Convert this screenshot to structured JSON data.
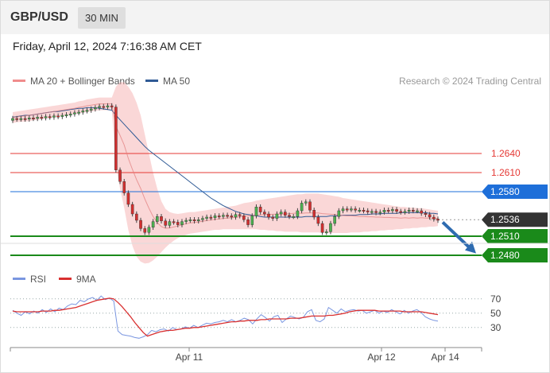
{
  "header": {
    "pair": "GBP/USD",
    "timeframe": "30 MIN",
    "datetime": "Friday, April 12, 2024 7:16:38 AM CET"
  },
  "colors": {
    "bollinger": "#f4a6a6",
    "ma50": "#2f5a95",
    "ma20": "#e07a7a",
    "resistance": "#e53935",
    "pivot": "#1e6fd9",
    "support": "#1a8a1a",
    "current": "#333333",
    "rsi": "#7a96e0",
    "rsi_ma": "#d93030",
    "arrow": "#2e6bb0"
  },
  "chart_data": [
    {
      "type": "candlestick",
      "legend": [
        {
          "label": "MA 20 + Bollinger Bands",
          "color": "#f08c8c"
        },
        {
          "label": "MA 50",
          "color": "#2f5a95"
        }
      ],
      "credit": "Research © 2024 Trading Central",
      "ylim": [
        1.2465,
        1.273
      ],
      "levels": [
        {
          "value": 1.264,
          "label": "1.2640",
          "type": "resistance"
        },
        {
          "value": 1.261,
          "label": "1.2610",
          "type": "resistance"
        },
        {
          "value": 1.258,
          "label": "1.2580",
          "type": "pivot"
        },
        {
          "value": 1.2536,
          "label": "1.2536",
          "type": "current"
        },
        {
          "value": 1.251,
          "label": "1.2510",
          "type": "support"
        },
        {
          "value": 1.248,
          "label": "1.2480",
          "type": "support"
        }
      ],
      "xticks": [
        "Apr 11",
        "Apr 12",
        "Apr 14"
      ],
      "closes": [
        1.2695,
        1.2694,
        1.2695,
        1.2694,
        1.2696,
        1.2695,
        1.2697,
        1.2696,
        1.2698,
        1.2697,
        1.2699,
        1.2698,
        1.27,
        1.2701,
        1.2702,
        1.2704,
        1.2705,
        1.2707,
        1.2708,
        1.271,
        1.2712,
        1.2714,
        1.2713,
        1.2715,
        1.2713,
        1.2614,
        1.2596,
        1.2578,
        1.256,
        1.2545,
        1.2535,
        1.2522,
        1.2516,
        1.2524,
        1.2533,
        1.2541,
        1.2534,
        1.2527,
        1.2533,
        1.2532,
        1.2528,
        1.2533,
        1.2535,
        1.2536,
        1.2534,
        1.2536,
        1.2538,
        1.254,
        1.2539,
        1.2542,
        1.2541,
        1.2543,
        1.2542,
        1.254,
        1.2544,
        1.2542,
        1.2536,
        1.2528,
        1.2542,
        1.2556,
        1.2548,
        1.2545,
        1.254,
        1.2538,
        1.2545,
        1.2548,
        1.2543,
        1.2541,
        1.2541,
        1.255,
        1.2562,
        1.2564,
        1.2551,
        1.254,
        1.253,
        1.2516,
        1.2517,
        1.253,
        1.2541,
        1.255,
        1.2553,
        1.2552,
        1.2553,
        1.2551,
        1.2551,
        1.255,
        1.2548,
        1.2549,
        1.2547,
        1.2548,
        1.2551,
        1.255,
        1.2552,
        1.2549,
        1.2548,
        1.2549,
        1.2551,
        1.255,
        1.255,
        1.2546,
        1.2544,
        1.254,
        1.2537,
        1.2535
      ],
      "opens": [
        1.2692,
        1.2695,
        1.2694,
        1.2695,
        1.2694,
        1.2696,
        1.2695,
        1.2697,
        1.2696,
        1.2698,
        1.2697,
        1.2699,
        1.2698,
        1.27,
        1.2701,
        1.2702,
        1.2704,
        1.2705,
        1.2707,
        1.2708,
        1.271,
        1.2712,
        1.2714,
        1.2713,
        1.2715,
        1.2713,
        1.2614,
        1.2596,
        1.2578,
        1.256,
        1.2545,
        1.2535,
        1.2522,
        1.2516,
        1.2524,
        1.2533,
        1.2541,
        1.2534,
        1.2527,
        1.2533,
        1.2532,
        1.2528,
        1.2533,
        1.2535,
        1.2536,
        1.2534,
        1.2536,
        1.2538,
        1.254,
        1.2539,
        1.2542,
        1.2541,
        1.2543,
        1.2542,
        1.254,
        1.2544,
        1.2542,
        1.2536,
        1.2528,
        1.2542,
        1.2556,
        1.2548,
        1.2545,
        1.254,
        1.2538,
        1.2545,
        1.2548,
        1.2543,
        1.2541,
        1.2541,
        1.255,
        1.2562,
        1.2564,
        1.2551,
        1.254,
        1.253,
        1.2516,
        1.2517,
        1.253,
        1.2541,
        1.255,
        1.2553,
        1.2552,
        1.2553,
        1.2551,
        1.2551,
        1.255,
        1.2548,
        1.2549,
        1.2547,
        1.2548,
        1.2551,
        1.255,
        1.2552,
        1.2549,
        1.2548,
        1.2549,
        1.2551,
        1.255,
        1.255,
        1.2546,
        1.2544,
        1.254,
        1.2537
      ],
      "ma50": [
        1.2697,
        1.2698,
        1.2699,
        1.27,
        1.27,
        1.2701,
        1.2702,
        1.2703,
        1.2704,
        1.2705,
        1.2706,
        1.2706,
        1.2707,
        1.2708,
        1.2709,
        1.271,
        1.2711,
        1.2711,
        1.2712,
        1.2712,
        1.2712,
        1.2711,
        1.271,
        1.2709,
        1.2708,
        1.27,
        1.2693,
        1.2686,
        1.2679,
        1.2672,
        1.2665,
        1.2658,
        1.2651,
        1.2645,
        1.264,
        1.2635,
        1.263,
        1.2625,
        1.262,
        1.2615,
        1.261,
        1.2605,
        1.26,
        1.2595,
        1.259,
        1.2585,
        1.258,
        1.2575,
        1.257,
        1.2566,
        1.2562,
        1.2558,
        1.2555,
        1.2552,
        1.2549,
        1.2547,
        1.2545,
        1.2544,
        1.2543,
        1.2542,
        1.2541,
        1.254,
        1.254,
        1.254,
        1.254,
        1.254,
        1.254,
        1.254,
        1.254,
        1.254,
        1.254,
        1.2541,
        1.2541,
        1.2541,
        1.2541,
        1.2541,
        1.2541,
        1.2542,
        1.2542,
        1.2542,
        1.2543,
        1.2543,
        1.2543,
        1.2543,
        1.2544,
        1.2544,
        1.2544,
        1.2545,
        1.2545,
        1.2545,
        1.2546,
        1.2546,
        1.2546,
        1.2546,
        1.2547,
        1.2547,
        1.2547,
        1.2547,
        1.2547,
        1.2547,
        1.2547,
        1.2546,
        1.2546,
        1.2545
      ],
      "bb_upper": [
        1.2705,
        1.2706,
        1.2707,
        1.2708,
        1.2709,
        1.271,
        1.2711,
        1.2712,
        1.2713,
        1.2714,
        1.2715,
        1.2716,
        1.2717,
        1.2718,
        1.2719,
        1.272,
        1.2722,
        1.2723,
        1.2725,
        1.2726,
        1.2727,
        1.2728,
        1.2728,
        1.2728,
        1.2728,
        1.2745,
        1.2752,
        1.2752,
        1.2745,
        1.2735,
        1.272,
        1.27,
        1.267,
        1.264,
        1.261,
        1.2585,
        1.2565,
        1.2553,
        1.2548,
        1.2546,
        1.2545,
        1.2546,
        1.2547,
        1.2548,
        1.2548,
        1.2549,
        1.255,
        1.2551,
        1.2552,
        1.2553,
        1.2554,
        1.2555,
        1.2556,
        1.2557,
        1.2558,
        1.256,
        1.2562,
        1.2563,
        1.2564,
        1.2566,
        1.2567,
        1.2568,
        1.2569,
        1.257,
        1.2571,
        1.2572,
        1.2573,
        1.2574,
        1.2575,
        1.2576,
        1.2576,
        1.2577,
        1.2577,
        1.2577,
        1.2577,
        1.2576,
        1.2575,
        1.2574,
        1.2573,
        1.2572,
        1.257,
        1.2569,
        1.2568,
        1.2567,
        1.2566,
        1.2565,
        1.2564,
        1.2563,
        1.2562,
        1.2561,
        1.256,
        1.2559,
        1.2558,
        1.2557,
        1.2556,
        1.2556,
        1.2555,
        1.2555,
        1.2554,
        1.2554,
        1.2553,
        1.2552,
        1.2551,
        1.255
      ],
      "bb_lower": [
        1.2688,
        1.2689,
        1.269,
        1.269,
        1.2691,
        1.2692,
        1.2693,
        1.2694,
        1.2695,
        1.2696,
        1.2697,
        1.2698,
        1.2699,
        1.27,
        1.2701,
        1.2702,
        1.2703,
        1.2704,
        1.2705,
        1.2706,
        1.2707,
        1.2708,
        1.2708,
        1.2708,
        1.2708,
        1.262,
        1.2585,
        1.2555,
        1.252,
        1.2495,
        1.2478,
        1.247,
        1.2467,
        1.2468,
        1.2472,
        1.2478,
        1.2485,
        1.2492,
        1.2498,
        1.2503,
        1.2507,
        1.251,
        1.2512,
        1.2514,
        1.2515,
        1.2516,
        1.2517,
        1.2518,
        1.2519,
        1.252,
        1.252,
        1.2521,
        1.2521,
        1.2521,
        1.2521,
        1.2521,
        1.2521,
        1.2521,
        1.2521,
        1.2521,
        1.252,
        1.252,
        1.2519,
        1.2519,
        1.2518,
        1.2518,
        1.2517,
        1.2517,
        1.2517,
        1.2517,
        1.2516,
        1.2516,
        1.2516,
        1.2516,
        1.2516,
        1.2515,
        1.2515,
        1.2515,
        1.2515,
        1.2515,
        1.2515,
        1.2515,
        1.2516,
        1.2516,
        1.2516,
        1.2517,
        1.2517,
        1.2518,
        1.2518,
        1.2519,
        1.2519,
        1.252,
        1.252,
        1.2521,
        1.2521,
        1.2522,
        1.2522,
        1.2523,
        1.2523,
        1.2524,
        1.2524,
        1.2525,
        1.2525,
        1.2526
      ],
      "forecast_arrow": {
        "from": 1.2532,
        "to": 1.2483
      }
    },
    {
      "type": "line",
      "legend": [
        {
          "label": "RSI",
          "color": "#7a96e0"
        },
        {
          "label": "9MA",
          "color": "#d93030"
        }
      ],
      "ylim": [
        12,
        82
      ],
      "ylines": [
        70,
        50,
        30
      ],
      "yticks": [
        "70",
        "50",
        "30"
      ],
      "rsi": [
        54,
        50,
        47,
        52,
        49,
        53,
        50,
        55,
        51,
        56,
        52,
        57,
        55,
        60,
        63,
        62,
        68,
        66,
        70,
        72,
        68,
        74,
        69,
        71,
        67,
        25,
        20,
        19,
        18,
        16,
        15,
        17,
        20,
        26,
        24,
        27,
        28,
        25,
        30,
        27,
        28,
        31,
        29,
        33,
        30,
        33,
        36,
        35,
        37,
        38,
        40,
        38,
        41,
        38,
        40,
        43,
        41,
        35,
        42,
        48,
        44,
        39,
        45,
        47,
        37,
        42,
        46,
        44,
        42,
        44,
        52,
        55,
        40,
        38,
        42,
        58,
        54,
        50,
        56,
        52,
        54,
        55,
        53,
        54,
        50,
        52,
        54,
        50,
        53,
        51,
        55,
        52,
        49,
        54,
        50,
        53,
        55,
        51,
        45,
        42,
        40,
        39
      ],
      "ma9": [
        53,
        52,
        52,
        52,
        52,
        52,
        52,
        53,
        53,
        53,
        54,
        54,
        55,
        56,
        57,
        58,
        60,
        62,
        64,
        66,
        68,
        69,
        70,
        71,
        70,
        65,
        59,
        52,
        45,
        37,
        30,
        23,
        18,
        20,
        22,
        24,
        25,
        26,
        26,
        27,
        28,
        29,
        29,
        30,
        30,
        31,
        32,
        33,
        34,
        35,
        36,
        37,
        38,
        38,
        39,
        39,
        40,
        40,
        40,
        41,
        41,
        42,
        42,
        42,
        42,
        42,
        43,
        43,
        43,
        44,
        45,
        46,
        46,
        46,
        46,
        47,
        47,
        48,
        49,
        50,
        52,
        53,
        54,
        54,
        54,
        54,
        54,
        53,
        53,
        53,
        53,
        53,
        53,
        52,
        52,
        52,
        52,
        52,
        51,
        50,
        49,
        48
      ],
      "xticks": [
        "Apr 11",
        "Apr 12",
        "Apr 14"
      ]
    }
  ]
}
